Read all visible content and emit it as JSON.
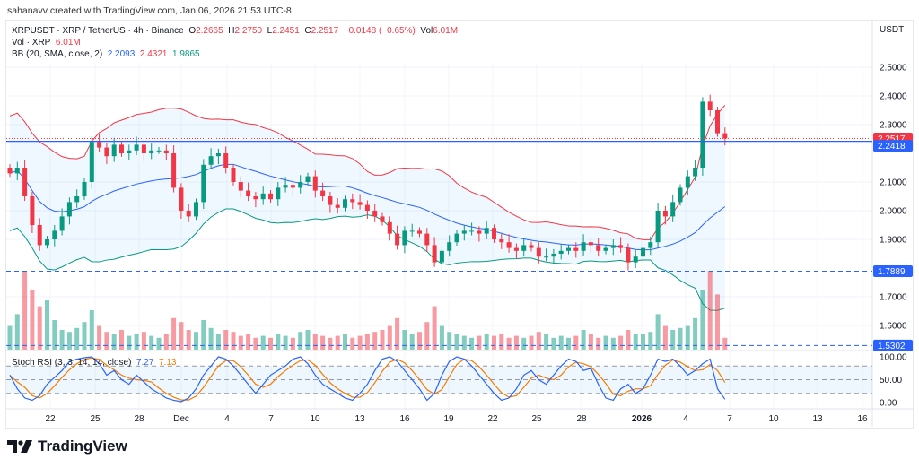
{
  "credit": "sahanavv created with TradingView.com, Jan 06, 2026 21:53 UTC-8",
  "legend": {
    "symbol": "XRPUSDT · XRP / TetherUS · 4h · Binance",
    "open_label": "O",
    "open": "2.2665",
    "high_label": "H",
    "high": "2.2750",
    "low_label": "L",
    "low": "2.2451",
    "close_label": "C",
    "close": "2.2517",
    "change": "−0.0148 (−0.65%)",
    "vol_label": "Vol",
    "vol": "6.01M",
    "volume_title": "Vol · XRP",
    "volume_value": "6.01M",
    "bb_title": "BB (20, SMA, close, 2)",
    "bb_basis": "2.2093",
    "bb_upper": "2.4321",
    "bb_lower": "1.9865",
    "stoch_title": "Stoch RSI (3, 3, 14, 14, close)",
    "stoch_k": "7.27",
    "stoch_d": "7.13"
  },
  "price_axis": {
    "currency": "USDT",
    "ticks": [
      "2.5000",
      "2.4000",
      "2.3000",
      "2.1000",
      "2.0000",
      "1.9000",
      "1.7000",
      "1.6000"
    ],
    "tags": [
      {
        "value": "2.2517",
        "color": "#f23645"
      },
      {
        "value": "2.2418",
        "color": "#2962ff"
      },
      {
        "value": "1.7889",
        "color": "#2962ff"
      },
      {
        "value": "1.5302",
        "color": "#2962ff"
      }
    ]
  },
  "stoch_axis": {
    "ticks": [
      "100.00",
      "50.00",
      "0.00"
    ]
  },
  "time_axis": {
    "labels": [
      "22",
      "25",
      "28",
      "Dec",
      "4",
      "7",
      "10",
      "13",
      "16",
      "19",
      "22",
      "25",
      "28",
      "2026",
      "4",
      "7",
      "10",
      "13",
      "16"
    ]
  },
  "footer": {
    "brand": "TradingView"
  },
  "colors": {
    "up": "#089981",
    "down": "#f23645",
    "bb_basis": "#2962ff",
    "bb_upper": "#f23645",
    "bb_lower": "#089981",
    "stoch_k": "#2962ff",
    "stoch_d": "#f57c00"
  },
  "chart_data": {
    "type": "candlestick",
    "interval": "4h",
    "ylim": [
      1.5,
      2.55
    ],
    "closes": [
      2.13,
      2.15,
      2.05,
      1.95,
      1.88,
      1.9,
      1.93,
      1.98,
      2.03,
      2.05,
      2.1,
      2.24,
      2.22,
      2.19,
      2.23,
      2.2,
      2.21,
      2.23,
      2.2,
      2.21,
      2.21,
      2.2,
      2.08,
      2.0,
      1.98,
      2.03,
      2.16,
      2.19,
      2.2,
      2.15,
      2.1,
      2.07,
      2.05,
      2.04,
      2.06,
      2.04,
      2.08,
      2.09,
      2.08,
      2.1,
      2.12,
      2.07,
      2.05,
      2.02,
      2.01,
      2.04,
      2.03,
      2.02,
      2.0,
      1.98,
      1.96,
      1.92,
      1.88,
      1.93,
      1.93,
      1.92,
      1.88,
      1.82,
      1.86,
      1.89,
      1.92,
      1.93,
      1.93,
      1.92,
      1.94,
      1.9,
      1.89,
      1.87,
      1.86,
      1.88,
      1.87,
      1.84,
      1.84,
      1.85,
      1.86,
      1.87,
      1.86,
      1.89,
      1.88,
      1.86,
      1.87,
      1.88,
      1.87,
      1.82,
      1.84,
      1.87,
      1.89,
      2.0,
      1.98,
      2.03,
      2.08,
      2.12,
      2.15,
      2.38,
      2.35,
      2.27,
      2.2517
    ],
    "volume_m": [
      12,
      18,
      40,
      30,
      22,
      25,
      15,
      10,
      9,
      11,
      14,
      20,
      12,
      9,
      8,
      10,
      7,
      8,
      9,
      7,
      6,
      8,
      16,
      14,
      10,
      9,
      15,
      11,
      8,
      10,
      9,
      7,
      8,
      6,
      7,
      6,
      8,
      7,
      6,
      9,
      10,
      8,
      7,
      6,
      7,
      8,
      6,
      7,
      8,
      9,
      10,
      12,
      16,
      10,
      8,
      9,
      14,
      22,
      12,
      9,
      8,
      7,
      6,
      7,
      8,
      7,
      8,
      6,
      7,
      6,
      7,
      9,
      8,
      6,
      7,
      6,
      7,
      10,
      8,
      6,
      7,
      6,
      7,
      10,
      8,
      8,
      9,
      18,
      12,
      10,
      11,
      12,
      16,
      30,
      40,
      28,
      6.01
    ],
    "stoch_k": [
      60,
      30,
      10,
      5,
      15,
      40,
      55,
      70,
      90,
      95,
      98,
      100,
      85,
      60,
      70,
      50,
      40,
      60,
      45,
      30,
      20,
      10,
      5,
      2,
      10,
      30,
      60,
      80,
      100,
      95,
      80,
      60,
      40,
      20,
      40,
      60,
      70,
      80,
      95,
      100,
      85,
      60,
      40,
      30,
      20,
      10,
      5,
      20,
      40,
      70,
      95,
      100,
      90,
      70,
      50,
      30,
      5,
      20,
      60,
      90,
      100,
      95,
      80,
      60,
      40,
      20,
      5,
      10,
      30,
      60,
      70,
      50,
      40,
      60,
      80,
      95,
      90,
      70,
      75,
      40,
      10,
      5,
      30,
      40,
      20,
      30,
      60,
      95,
      90,
      95,
      80,
      60,
      70,
      85,
      95,
      30,
      7.27
    ],
    "horizontal_lines": [
      1.7889,
      1.5302
    ],
    "stoch_levels": [
      80,
      50,
      20
    ]
  }
}
